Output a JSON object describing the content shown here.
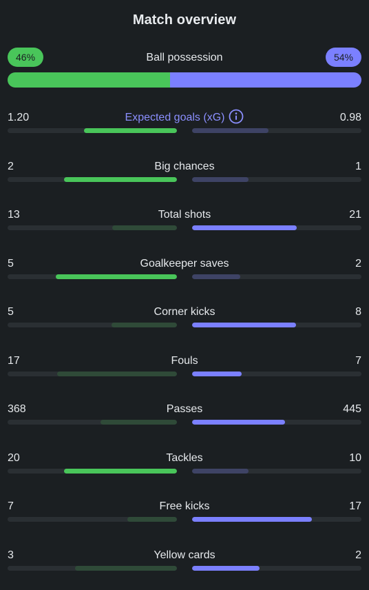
{
  "title": "Match overview",
  "possession": {
    "label": "Ball possession",
    "home_label": "46%",
    "away_label": "54%",
    "home": 46,
    "away": 54
  },
  "colors": {
    "home": "#49c55a",
    "home_dim": "#2f4a38",
    "away": "#7b80ff",
    "away_dim": "#3e4365",
    "track": "#2a2f33",
    "background": "#1b1f22"
  },
  "icons": {
    "info": "info-icon"
  },
  "stats": [
    {
      "label": "Expected goals (xG)",
      "home": "1.20",
      "away": "0.98",
      "home_frac": 0.55,
      "away_frac": 0.45,
      "winner": "home",
      "info": true
    },
    {
      "label": "Big chances",
      "home": "2",
      "away": "1",
      "home_frac": 0.667,
      "away_frac": 0.333,
      "winner": "home"
    },
    {
      "label": "Total shots",
      "home": "13",
      "away": "21",
      "home_frac": 0.382,
      "away_frac": 0.618,
      "winner": "away"
    },
    {
      "label": "Goalkeeper saves",
      "home": "5",
      "away": "2",
      "home_frac": 0.714,
      "away_frac": 0.286,
      "winner": "home"
    },
    {
      "label": "Corner kicks",
      "home": "5",
      "away": "8",
      "home_frac": 0.385,
      "away_frac": 0.615,
      "winner": "away"
    },
    {
      "label": "Fouls",
      "home": "17",
      "away": "7",
      "home_frac": 0.708,
      "away_frac": 0.292,
      "winner": "away"
    },
    {
      "label": "Passes",
      "home": "368",
      "away": "445",
      "home_frac": 0.453,
      "away_frac": 0.547,
      "winner": "away"
    },
    {
      "label": "Tackles",
      "home": "20",
      "away": "10",
      "home_frac": 0.667,
      "away_frac": 0.333,
      "winner": "home"
    },
    {
      "label": "Free kicks",
      "home": "7",
      "away": "17",
      "home_frac": 0.292,
      "away_frac": 0.708,
      "winner": "away"
    },
    {
      "label": "Yellow cards",
      "home": "3",
      "away": "2",
      "home_frac": 0.6,
      "away_frac": 0.4,
      "winner": "away"
    }
  ]
}
